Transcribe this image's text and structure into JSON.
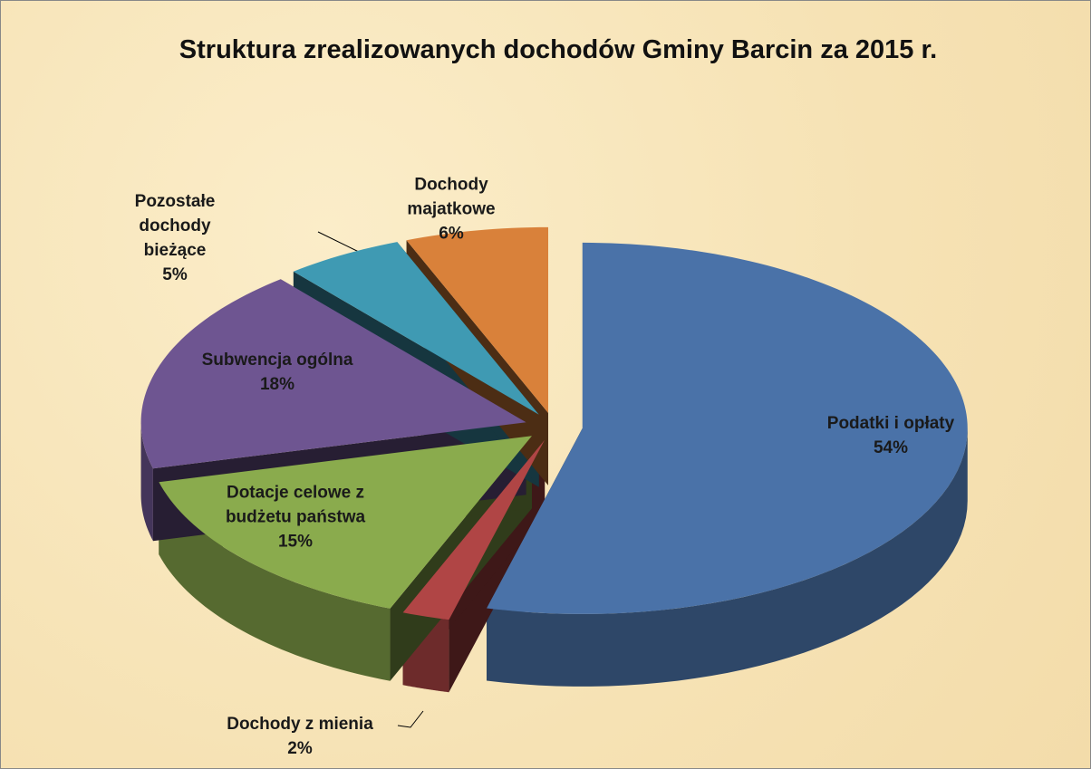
{
  "chart_data": {
    "type": "pie3d",
    "title": "Struktura zrealizowanych dochodów Gminy Barcin za 2015 r.",
    "categories": [
      "Podatki i opłaty",
      "Dochody z mienia",
      "Dotacje celowe z budżetu państwa",
      "Subwencja ogólna",
      "Pozostałe dochody bieżące",
      "Dochody majatkowe"
    ],
    "values": [
      54,
      2,
      15,
      18,
      5,
      6
    ],
    "value_labels": [
      "54%",
      "2%",
      "15%",
      "18%",
      "5%",
      "6%"
    ],
    "colors": [
      "#4a72a8",
      "#b04545",
      "#8aab4d",
      "#6e5591",
      "#3f9ab3",
      "#d9813a"
    ]
  }
}
